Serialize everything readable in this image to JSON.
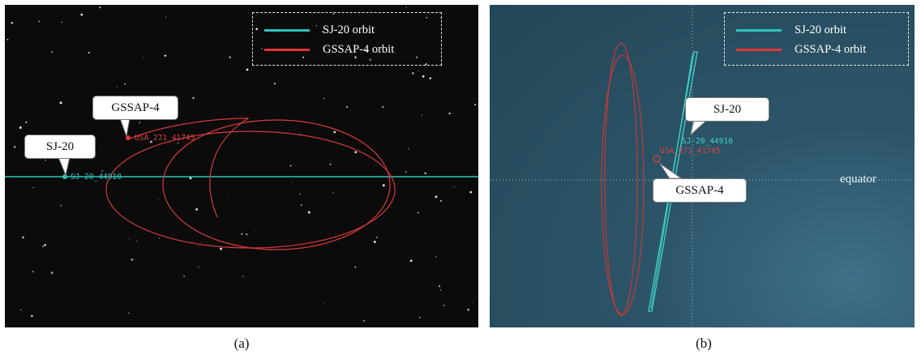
{
  "panel_a": {
    "caption": "(a)",
    "legend": [
      {
        "label": "SJ-20 orbit",
        "color": "#2fc4bb"
      },
      {
        "label": "GSSAP-4 orbit",
        "color": "#e53535"
      }
    ],
    "callouts": {
      "gssap": "GSSAP-4",
      "sj20": "SJ-20"
    },
    "markers": {
      "gssap": "USA_271_41745",
      "sj20": "SJ-20_44910"
    }
  },
  "panel_b": {
    "caption": "(b)",
    "legend": [
      {
        "label": "SJ-20 orbit",
        "color": "#2fc4bb"
      },
      {
        "label": "GSSAP-4 orbit",
        "color": "#e53535"
      }
    ],
    "callouts": {
      "sj20": "SJ-20",
      "gssap": "GSSAP-4"
    },
    "markers": {
      "sj20": "SJ-20_44910",
      "gssap": "USA_271_41745"
    },
    "equator_label": "equator"
  },
  "colors": {
    "sj20": "#2fc4bb",
    "gssap": "#e53535"
  }
}
